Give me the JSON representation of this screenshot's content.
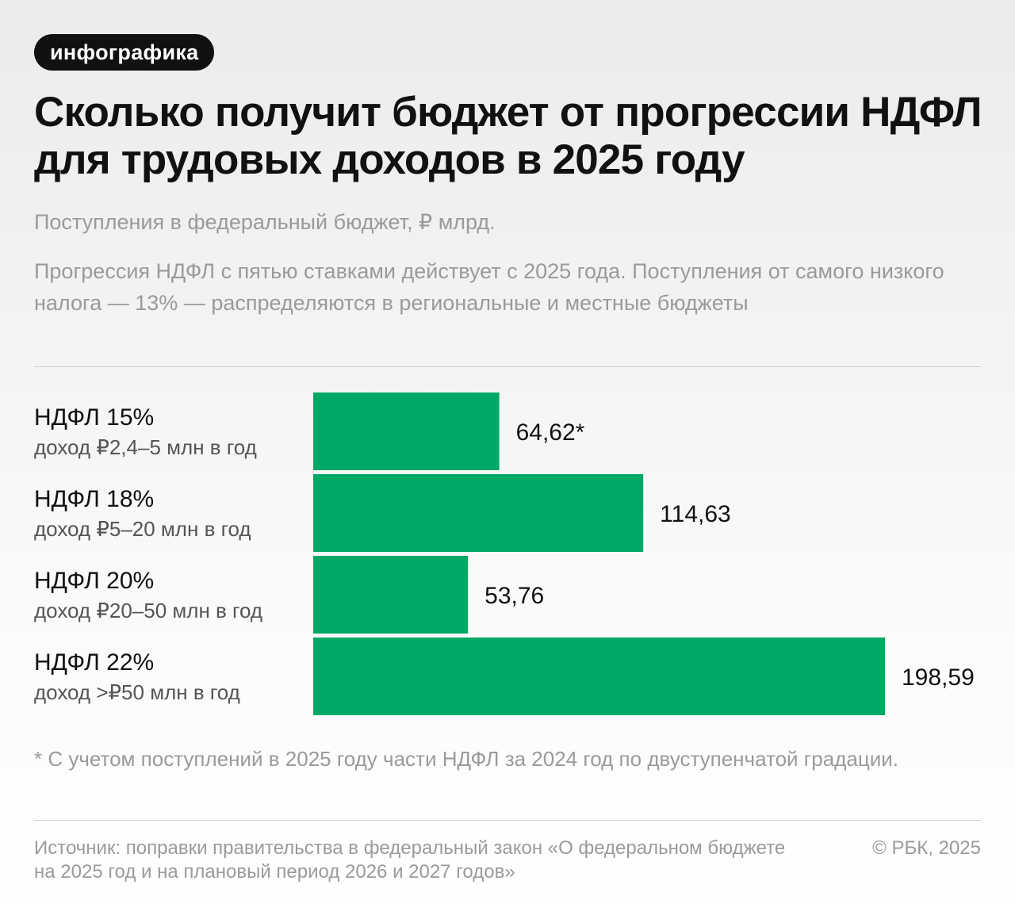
{
  "tag": "инфографика",
  "title": "Сколько получит бюджет от прогрессии НДФЛ для трудовых доходов в 2025 году",
  "subtitle": "Поступления в федеральный бюджет, ₽ млрд.",
  "note": "Прогрессия НДФЛ с пятью ставками действует с 2025 года. Поступления от самого низкого налога — 13% — распределяются в региональные и местные бюджеты",
  "footnote": "* С учетом поступлений в 2025 году части НДФЛ за 2024 год по двуступенчатой градации.",
  "source": "Источник: поправки правительства в федеральный закон «О федеральном бюджете на 2025 год и на плановый период 2026 и 2027 годов»",
  "copyright": "© РБК, 2025",
  "colors": {
    "bar": "#00a865"
  },
  "chart_data": {
    "type": "bar",
    "orientation": "horizontal",
    "title": "Сколько получит бюджет от прогрессии НДФЛ для трудовых доходов в 2025 году",
    "subtitle": "Поступления в федеральный бюджет, ₽ млрд.",
    "categories": [
      "НДФЛ 15%",
      "НДФЛ 18%",
      "НДФЛ 20%",
      "НДФЛ 22%"
    ],
    "category_sublabels": [
      "доход ₽2,4–5 млн в год",
      "доход ₽5–20 млн в год",
      "доход ₽20–50 млн в год",
      "доход >₽50 млн в год"
    ],
    "values": [
      64.62,
      114.63,
      53.76,
      198.59
    ],
    "value_labels": [
      "64,62*",
      "114,63",
      "53,76",
      "198,59"
    ],
    "xlim": [
      0,
      198.59
    ],
    "grid": false,
    "legend": "none"
  }
}
